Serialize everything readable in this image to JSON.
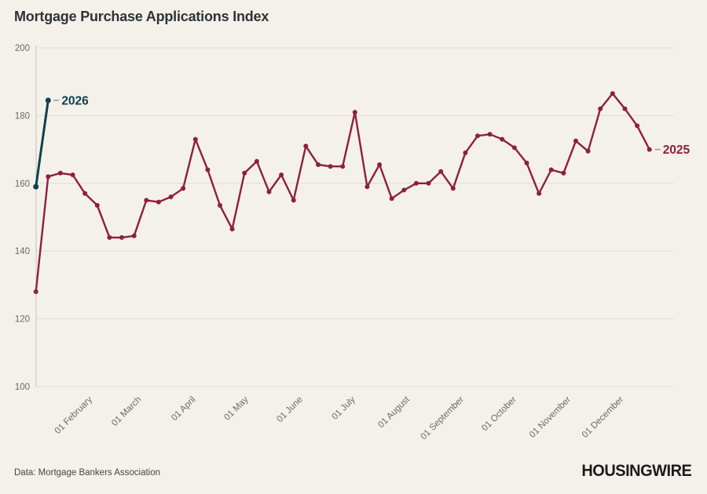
{
  "title": "Mortgage Purchase Applications Index",
  "footer": {
    "source": "Data: Mortgage Bankers Association",
    "brand": "HOUSINGWIRE"
  },
  "colors": {
    "background": "#f4f1ea",
    "title_text": "#2e3338",
    "grid": "#e2ded6",
    "axis": "#c8c4bc",
    "tick_text": "#6a6a66",
    "series_2025": "#8e1f3d",
    "series_2026": "#12404f",
    "label_connector": "#9a9a94",
    "source_text": "#454545",
    "brand_text": "#1b1b1b"
  },
  "chart_data": {
    "type": "line",
    "title": "Mortgage Purchase Applications Index",
    "xlabel": "",
    "ylabel": "",
    "ylim": [
      100,
      200
    ],
    "yticks": [
      100,
      120,
      140,
      160,
      180,
      200
    ],
    "grid": "horizontal",
    "x_unit": "weekly observations starting 01 January",
    "x_ticks": [
      {
        "label": "01 February",
        "week": 4.43
      },
      {
        "label": "01 March",
        "week": 8.43
      },
      {
        "label": "01 April",
        "week": 12.86
      },
      {
        "label": "01 May",
        "week": 17.14
      },
      {
        "label": "01 June",
        "week": 21.57
      },
      {
        "label": "01 July",
        "week": 25.86
      },
      {
        "label": "01 August",
        "week": 30.29
      },
      {
        "label": "01 September",
        "week": 34.71
      },
      {
        "label": "01 October",
        "week": 39.0
      },
      {
        "label": "01 November",
        "week": 43.43
      },
      {
        "label": "01 December",
        "week": 47.72
      }
    ],
    "series": [
      {
        "name": "2025",
        "color": "#8e1f3d",
        "start_week": 0,
        "values": [
          128,
          162,
          163,
          162.5,
          157,
          153.5,
          144,
          144,
          144.5,
          155,
          154.5,
          156,
          158.5,
          173,
          164,
          153.5,
          146.5,
          163,
          166.5,
          157.5,
          162.5,
          155,
          171,
          165.5,
          165,
          165,
          181,
          159,
          165.5,
          155.5,
          158,
          160,
          160,
          163.5,
          158.5,
          169,
          174,
          174.5,
          173,
          170.5,
          166,
          157,
          164,
          163,
          172.5,
          169.5,
          182,
          186.5,
          182,
          177,
          170
        ]
      },
      {
        "name": "2026",
        "color": "#12404f",
        "start_week": 0,
        "values": [
          159,
          184.5
        ]
      }
    ],
    "legend_position": "end-of-line labels"
  }
}
